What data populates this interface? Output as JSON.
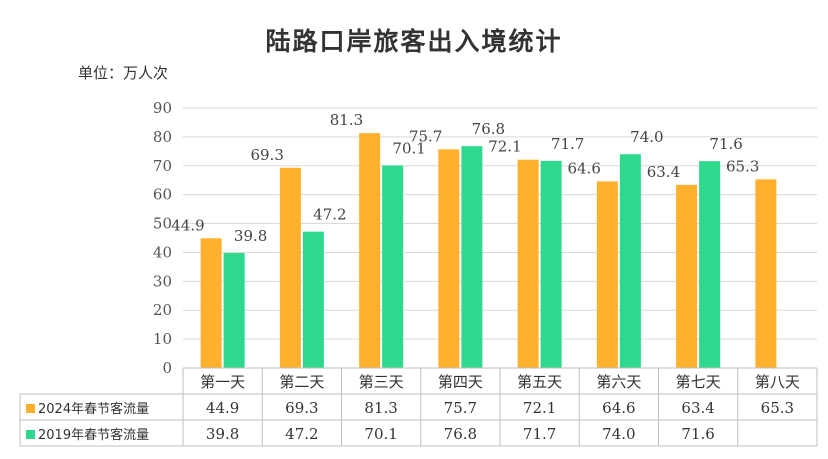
{
  "chart_data": {
    "type": "bar",
    "title": "陆路口岸旅客出入境统计",
    "unit_label": "单位：万人次",
    "categories": [
      "第一天",
      "第二天",
      "第三天",
      "第四天",
      "第五天",
      "第六天",
      "第七天",
      "第八天"
    ],
    "series": [
      {
        "name": "2024年春节客流量",
        "color": "#FFB12E",
        "values": [
          44.9,
          69.3,
          81.3,
          75.7,
          72.1,
          64.6,
          63.4,
          65.3
        ],
        "labels": [
          "44.9",
          "69.3",
          "81.3",
          "75.7",
          "72.1",
          "64.6",
          "63.4",
          "65.3"
        ]
      },
      {
        "name": "2019年春节客流量",
        "color": "#2ED98E",
        "values": [
          39.8,
          47.2,
          70.1,
          76.8,
          71.7,
          74.0,
          71.6,
          null
        ],
        "labels": [
          "39.8",
          "47.2",
          "70.1",
          "76.8",
          "71.7",
          "74.0",
          "71.6",
          ""
        ]
      }
    ],
    "ylim": [
      0,
      90
    ],
    "yticks": [
      0,
      10,
      20,
      30,
      40,
      50,
      60,
      70,
      80,
      90
    ],
    "grid": true,
    "legend": "data-table-below"
  }
}
